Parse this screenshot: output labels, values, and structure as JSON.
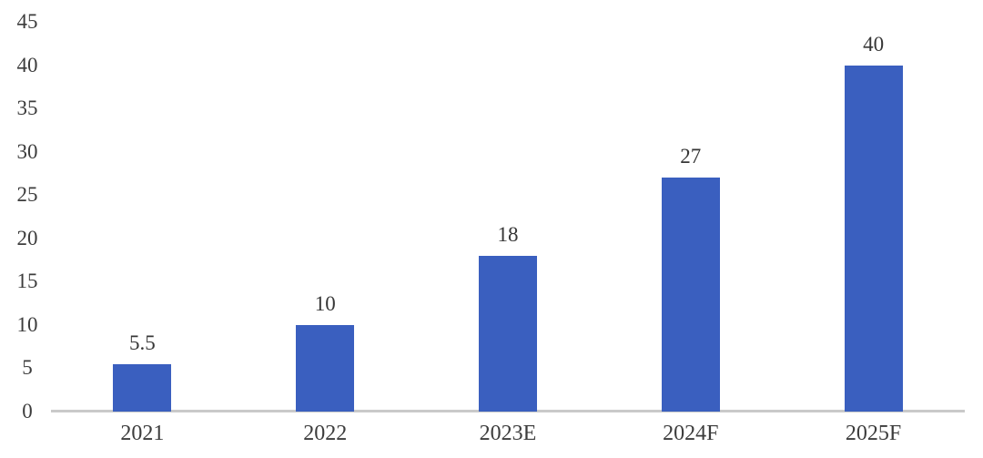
{
  "chart_data": {
    "type": "bar",
    "categories": [
      "2021",
      "2022",
      "2023E",
      "2024F",
      "2025F"
    ],
    "values": [
      5.5,
      10,
      18,
      27,
      40
    ],
    "data_labels": [
      "5.5",
      "10",
      "18",
      "27",
      "40"
    ],
    "title": "",
    "xlabel": "",
    "ylabel": "",
    "ylim": [
      0,
      45
    ],
    "yticks": [
      0,
      5,
      10,
      15,
      20,
      25,
      30,
      35,
      40,
      45
    ],
    "grid": false,
    "legend": false,
    "bar_color": "#3a5fbf",
    "axis_line_color": "#c9c9c9",
    "tick_text_color": "#3c3c3c",
    "label_text_color": "#363636"
  }
}
